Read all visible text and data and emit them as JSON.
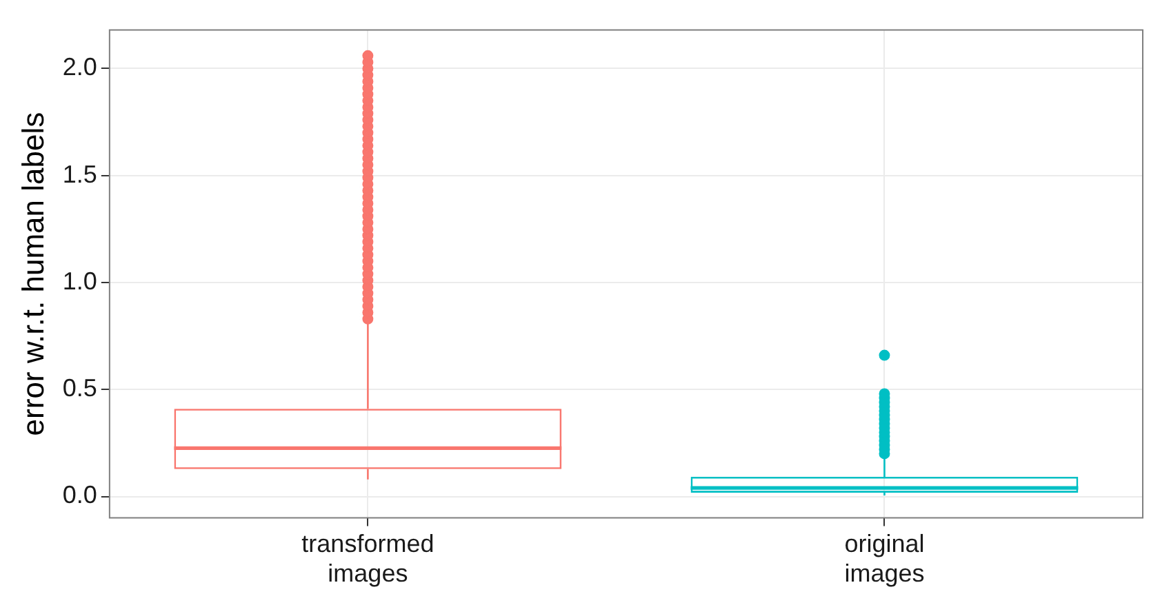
{
  "chart_data": {
    "type": "box",
    "ylabel": "error w.r.t. human labels",
    "categories": [
      "transformed images",
      "original images"
    ],
    "colors": [
      "#f8766d",
      "#00bfc4"
    ],
    "boxes": [
      {
        "low": 0.08,
        "q1": 0.128,
        "median": 0.226,
        "q3": 0.41,
        "high": 0.82,
        "outliers": [
          0.83,
          0.86,
          0.89,
          0.92,
          0.95,
          0.98,
          1.01,
          1.04,
          1.07,
          1.1,
          1.13,
          1.16,
          1.19,
          1.22,
          1.25,
          1.28,
          1.31,
          1.34,
          1.37,
          1.4,
          1.43,
          1.46,
          1.49,
          1.52,
          1.55,
          1.58,
          1.61,
          1.64,
          1.67,
          1.7,
          1.73,
          1.76,
          1.79,
          1.82,
          1.85,
          1.88,
          1.91,
          1.94,
          1.97,
          2.0,
          2.03,
          2.06
        ]
      },
      {
        "low": 0.005,
        "q1": 0.018,
        "median": 0.04,
        "q3": 0.092,
        "high": 0.19,
        "outliers": [
          0.2,
          0.22,
          0.24,
          0.26,
          0.28,
          0.3,
          0.32,
          0.34,
          0.36,
          0.38,
          0.4,
          0.42,
          0.44,
          0.46,
          0.48,
          0.66
        ]
      }
    ],
    "ylim": [
      -0.1,
      2.18
    ],
    "yticks": [
      {
        "value": 0,
        "label": "0.0"
      },
      {
        "value": 0.5,
        "label": "0.5"
      },
      {
        "value": 1,
        "label": "1.0"
      },
      {
        "value": 1.5,
        "label": "1.5"
      },
      {
        "value": 2,
        "label": "2.0"
      }
    ],
    "grid": true
  }
}
